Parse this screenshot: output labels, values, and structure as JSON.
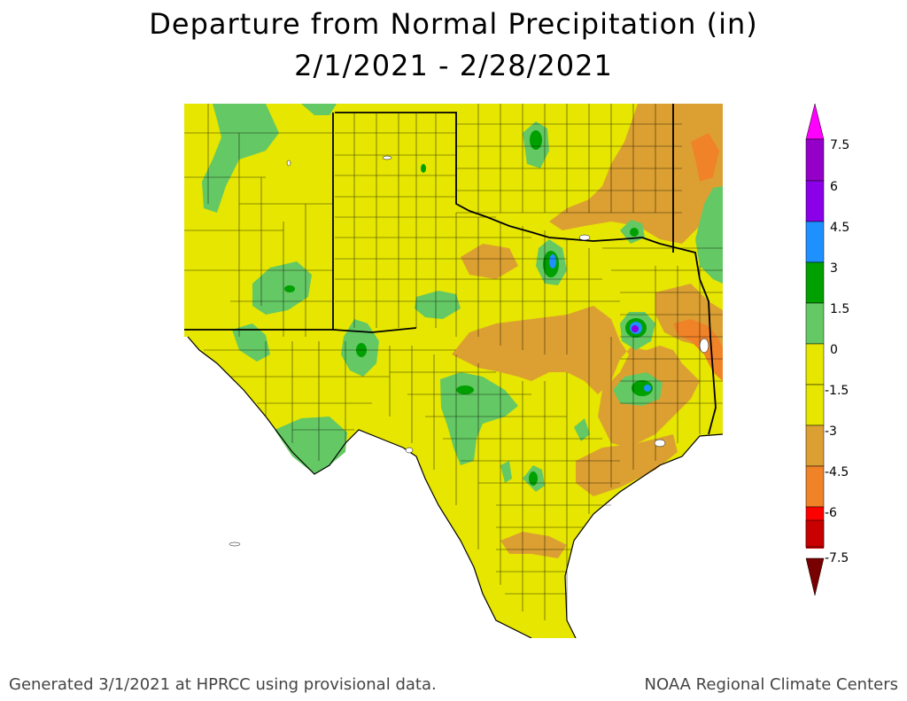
{
  "title": {
    "line1": "Departure from Normal Precipitation (in)",
    "line2": "2/1/2021 - 2/28/2021"
  },
  "legend": {
    "labels": [
      "7.5",
      "6",
      "4.5",
      "3",
      "1.5",
      "0",
      "-1.5",
      "-3",
      "-4.5",
      "-6",
      "-7.5"
    ],
    "colors": {
      "above_7_5": "#ff00ff",
      "6_to_7_5": "#9400c8",
      "4_5_to_6": "#8a00e8",
      "3_to_4_5": "#1e90ff",
      "1_5_to_3": "#00a000",
      "0_to_1_5": "#64c864",
      "neg1_5_to_0": "#e6e600",
      "neg3_to_neg1_5": "#dca032",
      "neg4_5_to_neg3": "#f08228",
      "neg6_to_neg4_5": "#ff0000",
      "neg7_5_to_neg6": "#c80000",
      "below_neg7_5": "#780000"
    }
  },
  "map": {
    "region": "Texas",
    "background_color": "#e6e600",
    "county_line_color": "#000000",
    "state_line_color": "#000000"
  },
  "footer": {
    "left": "Generated 3/1/2021 at HPRCC using provisional data.",
    "right": "NOAA Regional Climate Centers"
  }
}
